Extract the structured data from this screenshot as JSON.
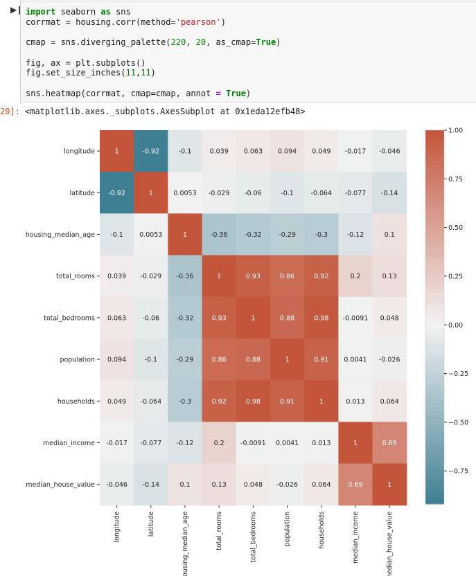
{
  "cell": {
    "run_glyph": "▶❙",
    "code_lines": [
      [
        [
          "kw",
          "import"
        ],
        [
          "t",
          " seaborn "
        ],
        [
          "kw",
          "as"
        ],
        [
          "t",
          " sns"
        ]
      ],
      [
        [
          "t",
          "corrmat = housing.corr(method="
        ],
        [
          "str",
          "'pearson'"
        ],
        [
          "t",
          ")"
        ]
      ],
      [],
      [
        [
          "t",
          "cmap = sns.diverging_palette("
        ],
        [
          "num",
          "220"
        ],
        [
          "t",
          ", "
        ],
        [
          "num",
          "20"
        ],
        [
          "t",
          ", as_cmap="
        ],
        [
          "kw",
          "True"
        ],
        [
          "t",
          ")"
        ]
      ],
      [],
      [
        [
          "t",
          "fig, ax = plt.subplots()"
        ]
      ],
      [
        [
          "t",
          "fig.set_size_inches("
        ],
        [
          "num",
          "11"
        ],
        [
          "t",
          ","
        ],
        [
          "num",
          "11"
        ],
        [
          "t",
          ")"
        ]
      ],
      [],
      [
        [
          "t",
          "sns.heatmap(corrmat, cmap=cmap, annot "
        ],
        [
          "op",
          "="
        ],
        [
          "t",
          " "
        ],
        [
          "kw",
          "True"
        ],
        [
          "t",
          ")"
        ]
      ]
    ],
    "output_prompt": "20]:",
    "output_text": "<matplotlib.axes._subplots.AxesSubplot at 0x1eda12efb48>"
  },
  "chart_data": {
    "type": "heatmap",
    "title": "",
    "xlabel": "",
    "ylabel": "",
    "labels": [
      "longitude",
      "latitude",
      "housing_median_age",
      "total_rooms",
      "total_bedrooms",
      "population",
      "households",
      "median_income",
      "median_house_value"
    ],
    "annotations": [
      [
        "1",
        "-0.92",
        "-0.1",
        "0.039",
        "0.063",
        "0.094",
        "0.049",
        "-0.017",
        "-0.046"
      ],
      [
        "-0.92",
        "1",
        "0.0053",
        "-0.029",
        "-0.06",
        "-0.1",
        "-0.064",
        "-0.077",
        "-0.14"
      ],
      [
        "-0.1",
        "0.0053",
        "1",
        "-0.36",
        "-0.32",
        "-0.29",
        "-0.3",
        "-0.12",
        "0.1"
      ],
      [
        "0.039",
        "-0.029",
        "-0.36",
        "1",
        "0.93",
        "0.86",
        "0.92",
        "0.2",
        "0.13"
      ],
      [
        "0.063",
        "-0.06",
        "-0.32",
        "0.93",
        "1",
        "0.88",
        "0.98",
        "-0.0091",
        "0.048"
      ],
      [
        "0.094",
        "-0.1",
        "-0.29",
        "0.86",
        "0.88",
        "1",
        "0.91",
        "0.0041",
        "-0.026"
      ],
      [
        "0.049",
        "-0.064",
        "-0.3",
        "0.92",
        "0.98",
        "0.91",
        "1",
        "0.013",
        "0.064"
      ],
      [
        "-0.017",
        "-0.077",
        "-0.12",
        "0.2",
        "-0.0091",
        "0.0041",
        "0.013",
        "1",
        "0.69"
      ],
      [
        "-0.046",
        "-0.14",
        "0.1",
        "0.13",
        "0.048",
        "-0.026",
        "0.064",
        "0.69",
        "1"
      ]
    ],
    "vmin": -0.92,
    "vmax": 1.0,
    "colorbar_ticks": [
      1.0,
      0.75,
      0.5,
      0.25,
      0.0,
      -0.25,
      -0.5,
      -0.75
    ],
    "colorbar_tick_labels": [
      "1.00",
      "0.75",
      "0.50",
      "0.25",
      "0.00",
      "−0.25",
      "−0.50",
      "−0.75"
    ],
    "colors": {
      "negative": "#3f7f93",
      "center": "#f2f2f2",
      "positive": "#c3553a"
    },
    "grid": false
  }
}
